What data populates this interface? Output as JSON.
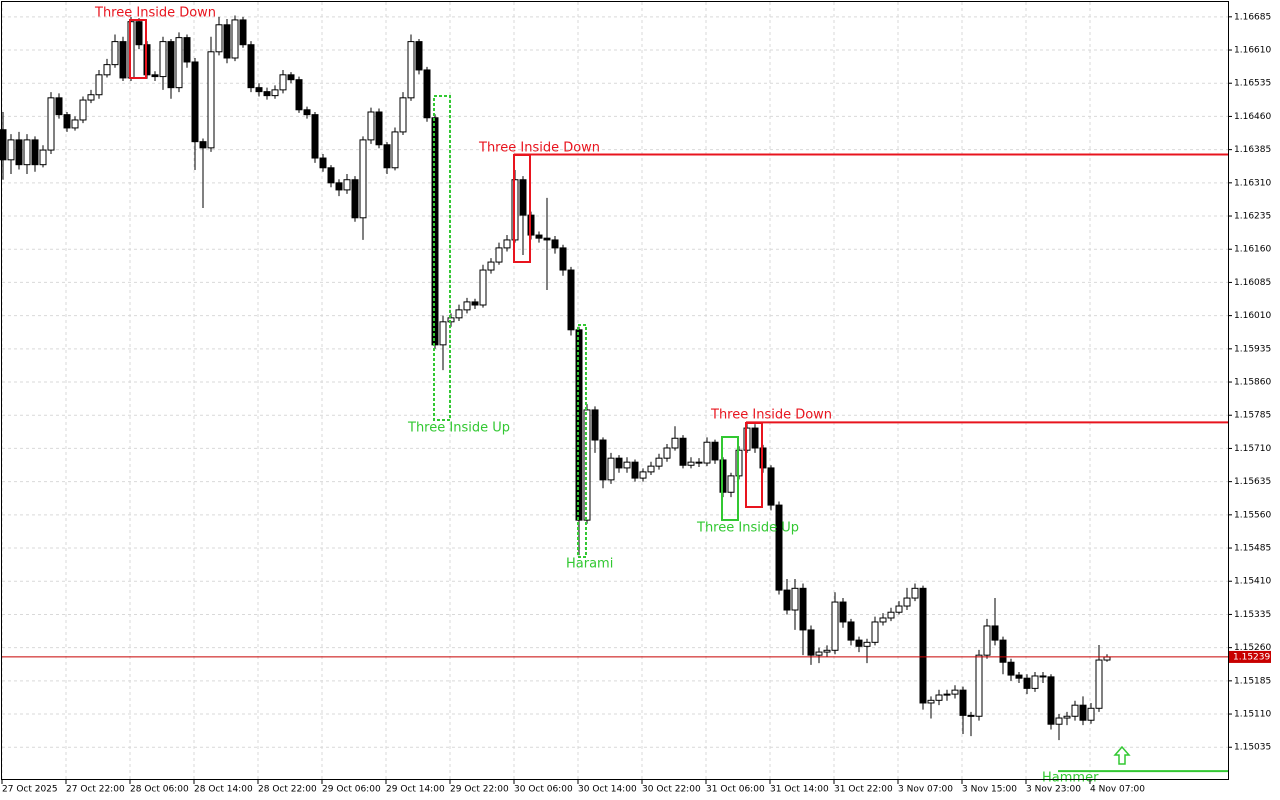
{
  "chart_data": {
    "type": "candlestick",
    "categories": [
      "27 Oct 2025",
      null,
      null,
      null,
      null,
      null,
      null,
      null,
      "27 Oct 22:00",
      null,
      null,
      null,
      null,
      null,
      null,
      null,
      "28 Oct 06:00",
      null,
      null,
      null,
      null,
      null,
      null,
      null,
      "28 Oct 14:00",
      null,
      null,
      null,
      null,
      null,
      null,
      null,
      "28 Oct 22:00",
      null,
      null,
      null,
      null,
      null,
      null,
      null,
      "29 Oct 06:00",
      null,
      null,
      null,
      null,
      null,
      null,
      null,
      "29 Oct 14:00",
      null,
      null,
      null,
      null,
      null,
      null,
      null,
      "29 Oct 22:00",
      null,
      null,
      null,
      null,
      null,
      null,
      null,
      "30 Oct 06:00",
      null,
      null,
      null,
      null,
      null,
      null,
      null,
      "30 Oct 14:00",
      null,
      null,
      null,
      null,
      null,
      null,
      null,
      "30 Oct 22:00",
      null,
      null,
      null,
      null,
      null,
      null,
      null,
      "31 Oct 06:00",
      null,
      null,
      null,
      null,
      null,
      null,
      null,
      "31 Oct 14:00",
      null,
      null,
      null,
      null,
      null,
      null,
      null,
      "31 Oct 22:00",
      null,
      null,
      null,
      null,
      null,
      null,
      null,
      "3 Nov 07:00",
      null,
      null,
      null,
      null,
      null,
      null,
      null,
      "3 Nov 15:00",
      null,
      null,
      null,
      null,
      null,
      null,
      null,
      "3 Nov 23:00",
      null,
      null,
      null,
      null,
      null,
      null,
      null,
      "4 Nov 07:00",
      null,
      null
    ],
    "open": [
      1.1643,
      1.16362,
      1.16407,
      1.16351,
      1.16407,
      1.16351,
      1.16384,
      1.16502,
      1.16464,
      1.16434,
      1.16452,
      1.16497,
      1.16509,
      1.16554,
      1.16577,
      1.16629,
      1.16547,
      1.16674,
      1.16622,
      1.16554,
      1.1655,
      1.16629,
      1.16525,
      1.16638,
      1.16583,
      1.16403,
      1.16389,
      1.16606,
      1.16667,
      1.16592,
      1.16678,
      1.16622,
      1.16525,
      1.16516,
      1.16507,
      1.1652,
      1.16554,
      1.16543,
      1.16475,
      1.16464,
      1.16366,
      1.16344,
      1.1631,
      1.16294,
      1.16317,
      1.16231,
      1.16407,
      1.1647,
      1.16396,
      1.16344,
      1.16425,
      1.16502,
      1.16629,
      1.16565,
      1.16457,
      1.15944,
      1.15996,
      1.16005,
      1.16023,
      1.16041,
      1.16034,
      1.16113,
      1.16131,
      1.16163,
      1.16181,
      1.16317,
      1.16237,
      1.16192,
      1.16185,
      1.16181,
      1.16163,
      1.16113,
      1.15978,
      1.15548,
      1.15797,
      1.15729,
      1.15639,
      1.15688,
      1.15666,
      1.15679,
      1.15643,
      1.15657,
      1.1567,
      1.15688,
      1.15711,
      1.15733,
      1.15672,
      1.15679,
      1.15677,
      1.15724,
      1.15684,
      1.15611,
      1.15648,
      1.15706,
      1.15756,
      1.15711,
      1.15666,
      1.15582,
      1.1539,
      1.15345,
      1.15394,
      1.153,
      1.15243,
      1.1525,
      1.15254,
      1.15363,
      1.15318,
      1.15277,
      1.15263,
      1.15272,
      1.15318,
      1.15327,
      1.1534,
      1.15354,
      1.15372,
      1.15394,
      1.15135,
      1.15141,
      1.15153,
      1.15155,
      1.15164,
      1.15107,
      1.15105,
      1.15243,
      1.15309,
      1.15277,
      1.15227,
      1.15198,
      1.15191,
      1.15168,
      1.15196,
      1.15194,
      1.15087,
      1.15101,
      1.15105,
      1.1513,
      1.15096,
      1.15123,
      1.15232
    ],
    "high": [
      1.1647,
      1.1642,
      1.16425,
      1.1642,
      1.16415,
      1.16395,
      1.16515,
      1.16512,
      1.1647,
      1.1646,
      1.16505,
      1.1652,
      1.16565,
      1.1659,
      1.16645,
      1.1664,
      1.16685,
      1.16682,
      1.1663,
      1.16562,
      1.1664,
      1.16635,
      1.1665,
      1.16645,
      1.16592,
      1.1641,
      1.1664,
      1.16685,
      1.1668,
      1.16688,
      1.16685,
      1.1663,
      1.16535,
      1.16525,
      1.1653,
      1.16565,
      1.1656,
      1.1655,
      1.16482,
      1.1647,
      1.16375,
      1.1635,
      1.16318,
      1.1633,
      1.16325,
      1.16415,
      1.1648,
      1.16478,
      1.16402,
      1.16435,
      1.16515,
      1.16645,
      1.16635,
      1.16572,
      1.16465,
      1.1601,
      1.16015,
      1.16035,
      1.1605,
      1.16048,
      1.16125,
      1.1614,
      1.16175,
      1.16192,
      1.16339,
      1.16325,
      1.16245,
      1.162,
      1.16276,
      1.1619,
      1.1617,
      1.1612,
      1.15985,
      1.1581,
      1.15805,
      1.15735,
      1.157,
      1.15695,
      1.1569,
      1.15685,
      1.15665,
      1.1568,
      1.15698,
      1.1572,
      1.1576,
      1.1574,
      1.1569,
      1.15688,
      1.15735,
      1.1573,
      1.1569,
      1.15655,
      1.15715,
      1.15768,
      1.15765,
      1.15718,
      1.15672,
      1.1559,
      1.15415,
      1.15415,
      1.15405,
      1.1531,
      1.1526,
      1.15265,
      1.15385,
      1.15372,
      1.15325,
      1.15285,
      1.1528,
      1.1533,
      1.15338,
      1.1535,
      1.15365,
      1.15395,
      1.15405,
      1.154,
      1.1515,
      1.15165,
      1.15165,
      1.15175,
      1.15172,
      1.15115,
      1.15255,
      1.15325,
      1.15372,
      1.15285,
      1.15235,
      1.15205,
      1.152,
      1.15205,
      1.15205,
      1.152,
      1.1511,
      1.15115,
      1.1514,
      1.1515,
      1.15135,
      1.15266,
      1.15245
    ],
    "low": [
      1.16317,
      1.1633,
      1.1634,
      1.1633,
      1.16335,
      1.16345,
      1.16375,
      1.16455,
      1.16425,
      1.16428,
      1.16445,
      1.1649,
      1.165,
      1.16548,
      1.1657,
      1.1654,
      1.1654,
      1.16612,
      1.16545,
      1.1654,
      1.1652,
      1.165,
      1.16515,
      1.1657,
      1.16339,
      1.16253,
      1.1638,
      1.16598,
      1.1658,
      1.16585,
      1.16615,
      1.16515,
      1.16505,
      1.16498,
      1.165,
      1.16512,
      1.16535,
      1.16468,
      1.16455,
      1.16355,
      1.16335,
      1.163,
      1.1628,
      1.16285,
      1.16222,
      1.16181,
      1.16398,
      1.16388,
      1.1633,
      1.16338,
      1.16418,
      1.16495,
      1.16555,
      1.16448,
      1.15935,
      1.15887,
      1.15985,
      1.15998,
      1.16015,
      1.16025,
      1.16028,
      1.16105,
      1.16125,
      1.16155,
      1.16175,
      1.16147,
      1.16182,
      1.16175,
      1.16068,
      1.1615,
      1.161,
      1.15965,
      1.15469,
      1.1554,
      1.157,
      1.1562,
      1.1563,
      1.15655,
      1.15655,
      1.15635,
      1.15635,
      1.1565,
      1.15662,
      1.1568,
      1.15705,
      1.15665,
      1.15665,
      1.15668,
      1.1567,
      1.15675,
      1.156,
      1.156,
      1.1564,
      1.157,
      1.157,
      1.15655,
      1.1557,
      1.1538,
      1.15335,
      1.153,
      1.15243,
      1.15221,
      1.15225,
      1.1524,
      1.15245,
      1.15305,
      1.15265,
      1.1525,
      1.15225,
      1.15265,
      1.1531,
      1.1532,
      1.15335,
      1.15345,
      1.15365,
      1.1512,
      1.151,
      1.1513,
      1.1514,
      1.15145,
      1.15065,
      1.1506,
      1.15095,
      1.15235,
      1.15265,
      1.152,
      1.15185,
      1.1518,
      1.15155,
      1.1516,
      1.1518,
      1.15075,
      1.15051,
      1.15085,
      1.15095,
      1.15085,
      1.15088,
      1.15115,
      1.15228
    ],
    "close": [
      1.16362,
      1.16407,
      1.16351,
      1.16407,
      1.16351,
      1.16384,
      1.16502,
      1.16464,
      1.16434,
      1.16452,
      1.16497,
      1.16509,
      1.16554,
      1.16577,
      1.16629,
      1.16547,
      1.16674,
      1.16622,
      1.16554,
      1.1655,
      1.16629,
      1.16525,
      1.16638,
      1.16583,
      1.16403,
      1.16389,
      1.16606,
      1.16667,
      1.16592,
      1.16678,
      1.16622,
      1.16525,
      1.16516,
      1.16507,
      1.1652,
      1.16554,
      1.16543,
      1.16475,
      1.16464,
      1.16366,
      1.16344,
      1.1631,
      1.16294,
      1.16317,
      1.16231,
      1.16407,
      1.1647,
      1.16396,
      1.16344,
      1.16425,
      1.16502,
      1.16629,
      1.16565,
      1.16457,
      1.15944,
      1.15996,
      1.16005,
      1.16023,
      1.16041,
      1.16034,
      1.16113,
      1.16131,
      1.16163,
      1.16181,
      1.16317,
      1.16237,
      1.16192,
      1.16185,
      1.16181,
      1.16163,
      1.16113,
      1.15978,
      1.15548,
      1.15797,
      1.15729,
      1.15639,
      1.15688,
      1.15666,
      1.15679,
      1.15643,
      1.15657,
      1.1567,
      1.15688,
      1.15711,
      1.15733,
      1.15672,
      1.15679,
      1.15677,
      1.15724,
      1.15684,
      1.15611,
      1.15648,
      1.15706,
      1.15756,
      1.15711,
      1.15666,
      1.15582,
      1.1539,
      1.15345,
      1.15394,
      1.153,
      1.15243,
      1.1525,
      1.15254,
      1.15363,
      1.15318,
      1.15277,
      1.15263,
      1.15272,
      1.15318,
      1.15327,
      1.1534,
      1.15354,
      1.15372,
      1.15394,
      1.15135,
      1.15141,
      1.15153,
      1.15155,
      1.15164,
      1.15107,
      1.15105,
      1.15243,
      1.15309,
      1.15277,
      1.15227,
      1.15198,
      1.15191,
      1.15168,
      1.15196,
      1.15194,
      1.15087,
      1.15101,
      1.15105,
      1.1513,
      1.15096,
      1.15123,
      1.15232,
      1.15239
    ],
    "up_color": "#ffffff",
    "down_color": "#000000",
    "outline_color": "#000000",
    "ylim": [
      1.14961,
      1.16723
    ],
    "yticks": [
      1.16685,
      {
        "value": 1.1661,
        "label": "1.16610"
      },
      1.16535,
      {
        "value": 1.1646,
        "label": "1.16460"
      },
      1.16385,
      {
        "value": 1.1631,
        "label": "1.16310"
      },
      1.16235,
      {
        "value": 1.1616,
        "label": "1.16160"
      },
      1.16085,
      {
        "value": 1.1601,
        "label": "1.16010"
      },
      1.15935,
      {
        "value": 1.1586,
        "label": "1.15860"
      },
      1.15785,
      {
        "value": 1.1571,
        "label": "1.15710"
      },
      1.15635,
      {
        "value": 1.1556,
        "label": "1.15560"
      },
      1.15485,
      {
        "value": 1.1541,
        "label": "1.15410"
      },
      1.15335,
      {
        "value": 1.1526,
        "label": "1.15260"
      },
      1.15185,
      {
        "value": 1.1511,
        "label": "1.15110"
      },
      1.15035
    ],
    "grid": true,
    "last_price": 1.15239,
    "last_price_color": "#c80000",
    "patterns": [
      {
        "label": "Three Inside Down",
        "color": "#e8141e"
      },
      {
        "label": "Three Inside Down",
        "color": "#e8141e",
        "level": 1.16374
      },
      {
        "label": "Three Inside Up",
        "color": "#32c832"
      },
      {
        "label": "Harami",
        "color": "#32c832"
      },
      {
        "label": "Three Inside Up",
        "color": "#32c832"
      },
      {
        "label": "Three Inside Down",
        "color": "#e8141e",
        "level": 1.15769
      },
      {
        "label": "Hammer",
        "color": "#32c832",
        "level": 1.14981
      }
    ]
  }
}
